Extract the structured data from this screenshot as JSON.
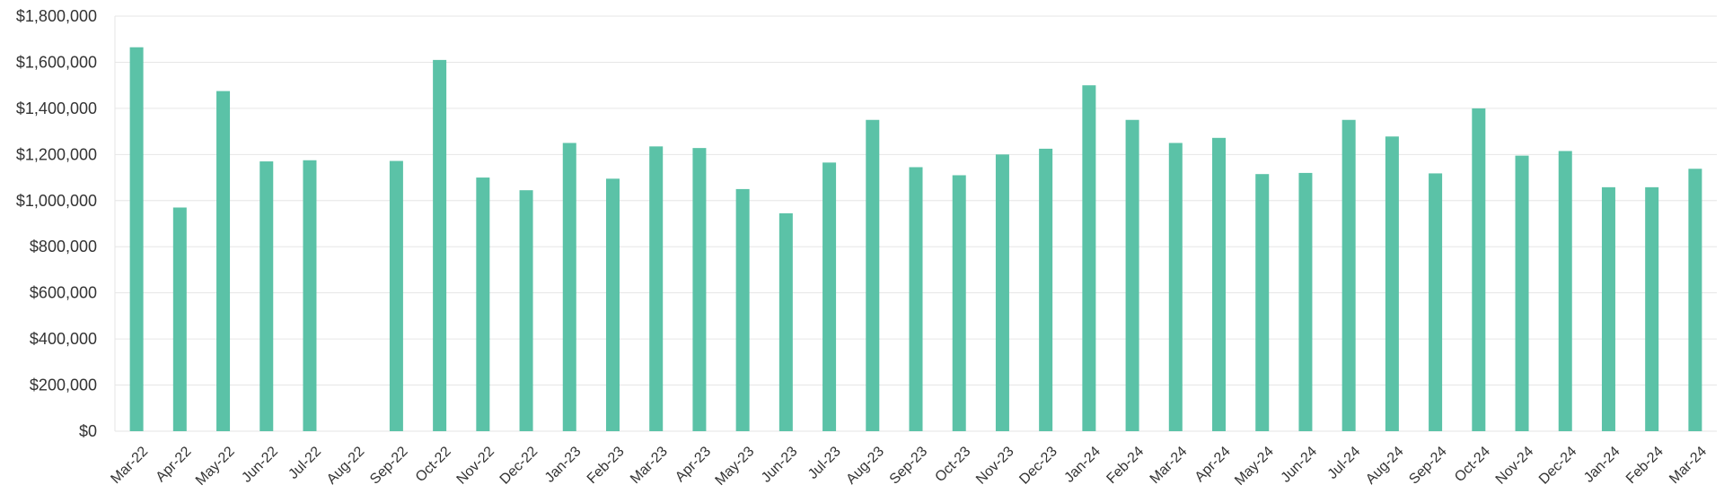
{
  "chart_data": {
    "type": "bar",
    "title": "",
    "xlabel": "",
    "ylabel": "",
    "ylim": [
      0,
      1800000
    ],
    "yticks": [
      0,
      200000,
      400000,
      600000,
      800000,
      1000000,
      1200000,
      1400000,
      1600000,
      1800000
    ],
    "ytick_labels": [
      "$0",
      "$200,000",
      "$400,000",
      "$600,000",
      "$800,000",
      "$1,000,000",
      "$1,200,000",
      "$1,400,000",
      "$1,600,000",
      "$1,800,000"
    ],
    "grid": true,
    "legend": "none",
    "bar_color": "#5BC2A7",
    "grid_color": "#E6E6E6",
    "categories": [
      "Mar-22",
      "Apr-22",
      "May-22",
      "Jun-22",
      "Jul-22",
      "Aug-22",
      "Sep-22",
      "Oct-22",
      "Nov-22",
      "Dec-22",
      "Jan-23",
      "Feb-23",
      "Mar-23",
      "Apr-23",
      "May-23",
      "Jun-23",
      "Jul-23",
      "Aug-23",
      "Sep-23",
      "Oct-23",
      "Nov-23",
      "Dec-23",
      "Jan-24",
      "Feb-24",
      "Mar-24",
      "Apr-24",
      "May-24",
      "Jun-24",
      "Jul-24",
      "Aug-24",
      "Sep-24",
      "Oct-24",
      "Nov-24",
      "Dec-24",
      "Jan-24",
      "Feb-24",
      "Mar-24"
    ],
    "values": [
      1665000,
      970000,
      1475000,
      1170000,
      1175000,
      0,
      1172000,
      1610000,
      1100000,
      1045000,
      1250000,
      1095000,
      1235000,
      1228000,
      1050000,
      945000,
      1165000,
      1350000,
      1145000,
      1110000,
      1200000,
      1225000,
      1500000,
      1350000,
      1250000,
      1272000,
      1115000,
      1120000,
      1350000,
      1278000,
      1118000,
      1400000,
      1195000,
      1215000,
      1058000,
      1058000,
      1138000
    ]
  }
}
